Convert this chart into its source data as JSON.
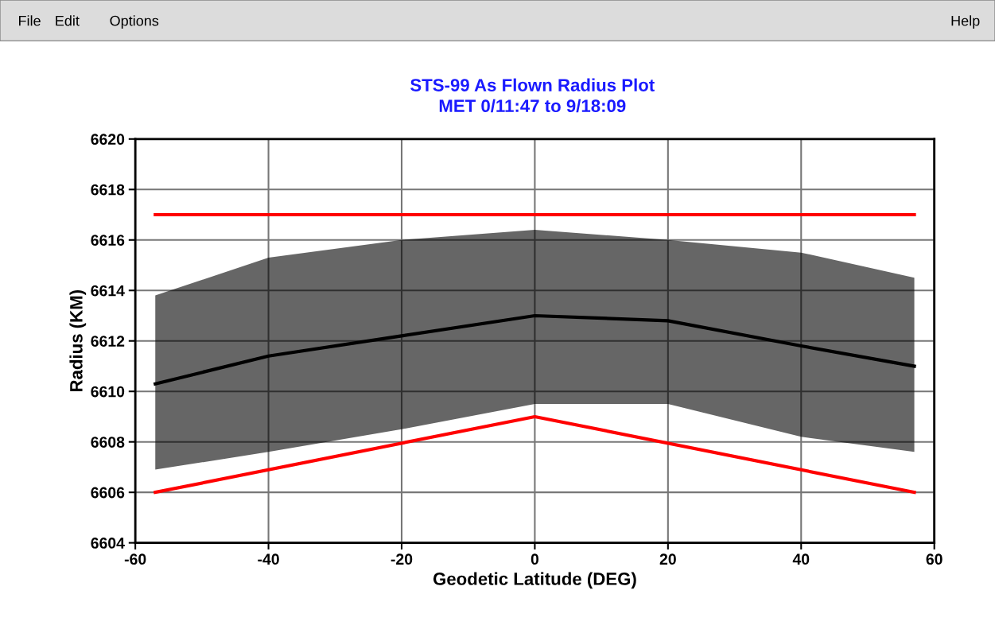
{
  "chart_data": {
    "type": "line",
    "title": "STS-99 As Flown Radius Plot",
    "subtitle": "MET 0/11:47 to 9/18:09",
    "xlabel": "Geodetic Latitude (DEG)",
    "ylabel": "Radius (KM)",
    "annotations": [
      "File",
      "Edit",
      "Options",
      "Help"
    ],
    "series": [
      {
        "color": "#000000",
        "x": [
          -57,
          -40,
          -20,
          0,
          20,
          40,
          57
        ],
        "values": [
          6610.3,
          6611.4,
          6612.2,
          6613.0,
          6612.8,
          6611.8,
          6611.0
        ],
        "lower": [
          6606.9,
          6607.6,
          6608.5,
          6609.5,
          6609.5,
          6608.2,
          6607.6
        ],
        "upper": [
          6613.8,
          6615.3,
          6616.0,
          6616.4,
          6616.0,
          6615.5,
          6614.5
        ]
      },
      {
        "color": "#ff0000",
        "x": [
          -57,
          57
        ],
        "values": [
          6617,
          6617
        ]
      },
      {
        "color": "#ff0000",
        "x": [
          -57,
          0,
          57
        ],
        "values": [
          6606,
          6609,
          6606
        ]
      }
    ],
    "xlim": [
      -60,
      60
    ],
    "xticks": [
      -60,
      -40,
      -20,
      0,
      20,
      40,
      60
    ],
    "ylim": [
      6604,
      6620
    ],
    "yticks": [
      6604,
      6606,
      6608,
      6610,
      6612,
      6614,
      6616,
      6618,
      6620
    ],
    "grid": true,
    "line_style": "solid"
  }
}
